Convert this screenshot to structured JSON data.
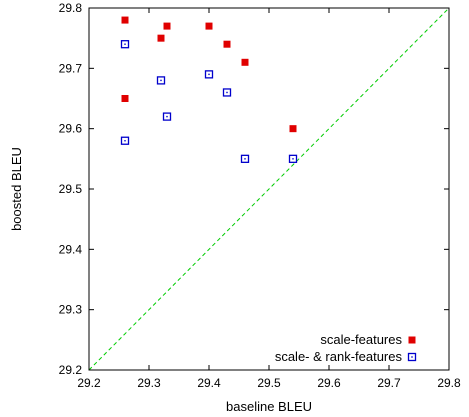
{
  "chart_data": {
    "type": "scatter",
    "title": "",
    "xlabel": "baseline BLEU",
    "ylabel": "boosted BLEU",
    "xlim": [
      29.2,
      29.8
    ],
    "ylim": [
      29.2,
      29.8
    ],
    "x_ticks": [
      "29.2",
      "29.3",
      "29.4",
      "29.5",
      "29.6",
      "29.7",
      "29.8"
    ],
    "y_ticks": [
      "29.2",
      "29.3",
      "29.4",
      "29.5",
      "29.6",
      "29.7",
      "29.8"
    ],
    "grid": false,
    "legend_position": "bottom-right",
    "reference_line": {
      "type": "diagonal",
      "from": [
        29.2,
        29.2
      ],
      "to": [
        29.8,
        29.8
      ],
      "color": "#00cc00",
      "style": "dashed"
    },
    "series": [
      {
        "name": "scale-features",
        "marker": "filled-square",
        "color": "#e00000",
        "points": [
          [
            29.26,
            29.78
          ],
          [
            29.33,
            29.77
          ],
          [
            29.4,
            29.77
          ],
          [
            29.32,
            29.75
          ],
          [
            29.43,
            29.74
          ],
          [
            29.46,
            29.71
          ],
          [
            29.26,
            29.65
          ],
          [
            29.54,
            29.6
          ]
        ]
      },
      {
        "name": "scale- & rank-features",
        "marker": "open-square",
        "color": "#0000cc",
        "points": [
          [
            29.26,
            29.74
          ],
          [
            29.4,
            29.69
          ],
          [
            29.32,
            29.68
          ],
          [
            29.43,
            29.66
          ],
          [
            29.33,
            29.62
          ],
          [
            29.26,
            29.58
          ],
          [
            29.46,
            29.55
          ],
          [
            29.54,
            29.55
          ]
        ]
      }
    ]
  }
}
